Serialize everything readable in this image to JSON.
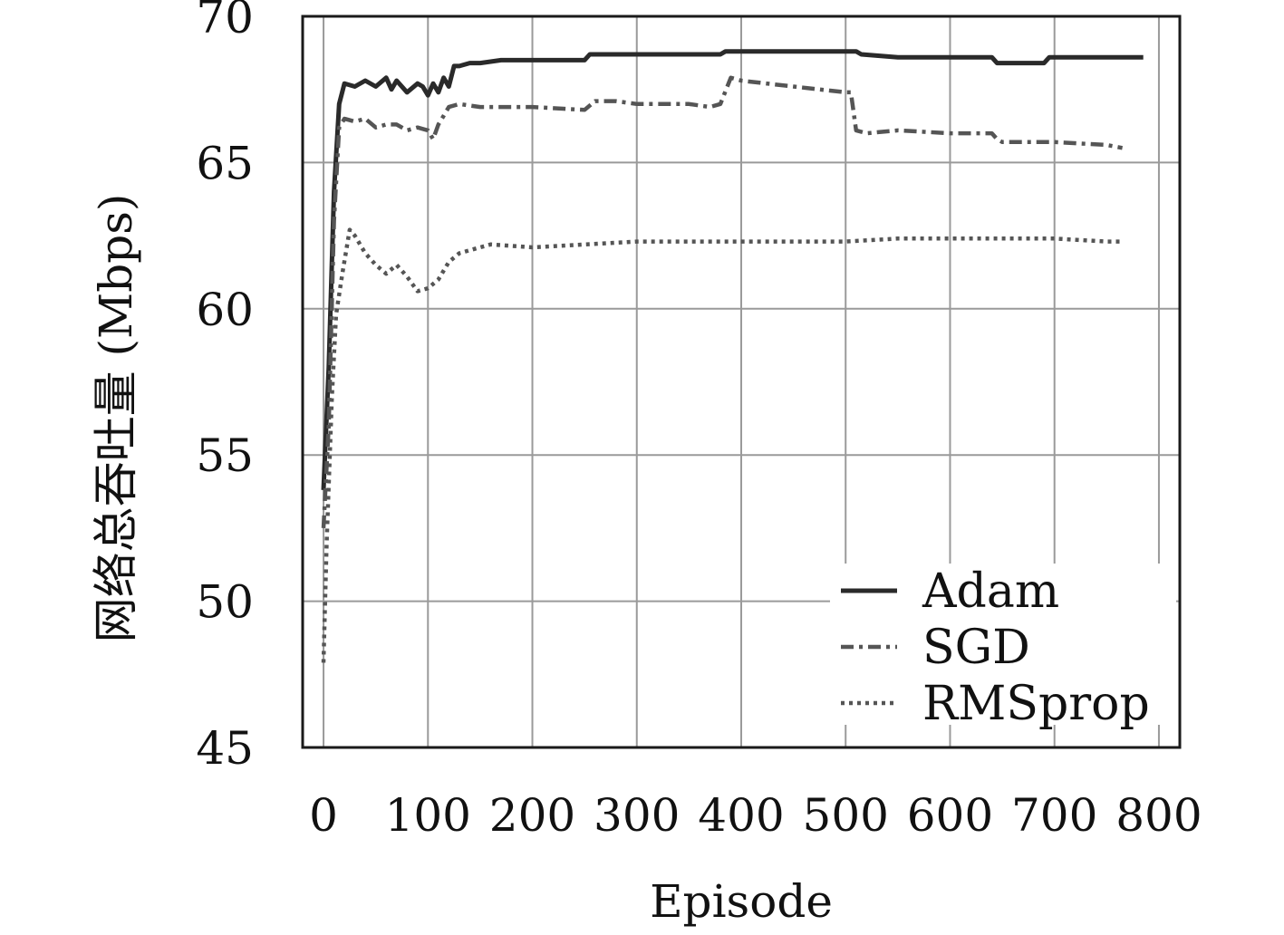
{
  "chart_data": {
    "type": "line",
    "title": "",
    "xlabel": "Episode",
    "ylabel": "网络总吞吐量 (Mbps)",
    "xlim": [
      -20,
      820
    ],
    "ylim": [
      45,
      70
    ],
    "xticks": [
      0,
      100,
      200,
      300,
      400,
      500,
      600,
      700,
      800
    ],
    "yticks": [
      45,
      50,
      55,
      60,
      65,
      70
    ],
    "grid": true,
    "legend_position": "bottom-right",
    "series": [
      {
        "name": "Adam",
        "style": "solid",
        "color": "#2a2a2a",
        "x": [
          0,
          5,
          10,
          15,
          20,
          30,
          40,
          50,
          60,
          65,
          70,
          80,
          90,
          95,
          100,
          105,
          110,
          115,
          120,
          125,
          130,
          140,
          150,
          170,
          190,
          200,
          250,
          255,
          260,
          300,
          350,
          380,
          385,
          400,
          450,
          500,
          510,
          515,
          550,
          600,
          640,
          645,
          680,
          690,
          695,
          700,
          750,
          785
        ],
        "y": [
          53.8,
          58,
          64,
          67,
          67.7,
          67.6,
          67.8,
          67.6,
          67.9,
          67.5,
          67.8,
          67.4,
          67.7,
          67.6,
          67.3,
          67.7,
          67.4,
          67.9,
          67.6,
          68.3,
          68.3,
          68.4,
          68.4,
          68.5,
          68.5,
          68.5,
          68.5,
          68.7,
          68.7,
          68.7,
          68.7,
          68.7,
          68.8,
          68.8,
          68.8,
          68.8,
          68.8,
          68.7,
          68.6,
          68.6,
          68.6,
          68.4,
          68.4,
          68.4,
          68.6,
          68.6,
          68.6,
          68.6
        ]
      },
      {
        "name": "SGD",
        "style": "dashdot",
        "color": "#555555",
        "x": [
          0,
          5,
          10,
          15,
          20,
          30,
          40,
          50,
          60,
          70,
          80,
          90,
          100,
          105,
          110,
          115,
          120,
          130,
          150,
          200,
          250,
          260,
          280,
          300,
          350,
          370,
          380,
          390,
          400,
          450,
          500,
          505,
          510,
          520,
          550,
          600,
          640,
          645,
          650,
          700,
          750,
          765
        ],
        "y": [
          52.5,
          56,
          63,
          66.2,
          66.5,
          66.4,
          66.5,
          66.2,
          66.3,
          66.3,
          66.1,
          66.2,
          66.1,
          65.8,
          66.3,
          66.6,
          66.9,
          67.0,
          66.9,
          66.9,
          66.8,
          67.1,
          67.1,
          67.0,
          67.0,
          66.9,
          67.0,
          67.9,
          67.8,
          67.6,
          67.4,
          67.4,
          66.1,
          66.0,
          66.1,
          66.0,
          66.0,
          65.8,
          65.7,
          65.7,
          65.6,
          65.5
        ]
      },
      {
        "name": "RMSprop",
        "style": "dotted",
        "color": "#555555",
        "x": [
          0,
          3,
          8,
          12,
          18,
          25,
          30,
          40,
          50,
          60,
          70,
          80,
          90,
          100,
          110,
          120,
          130,
          140,
          160,
          200,
          250,
          300,
          350,
          400,
          450,
          500,
          550,
          600,
          650,
          700,
          750,
          765
        ],
        "y": [
          47.9,
          52,
          57,
          59.8,
          61.2,
          62.7,
          62.5,
          61.9,
          61.5,
          61.2,
          61.5,
          61.1,
          60.6,
          60.7,
          61.0,
          61.6,
          61.9,
          62.0,
          62.2,
          62.1,
          62.2,
          62.3,
          62.3,
          62.3,
          62.3,
          62.3,
          62.4,
          62.4,
          62.4,
          62.4,
          62.3,
          62.3
        ]
      }
    ]
  }
}
